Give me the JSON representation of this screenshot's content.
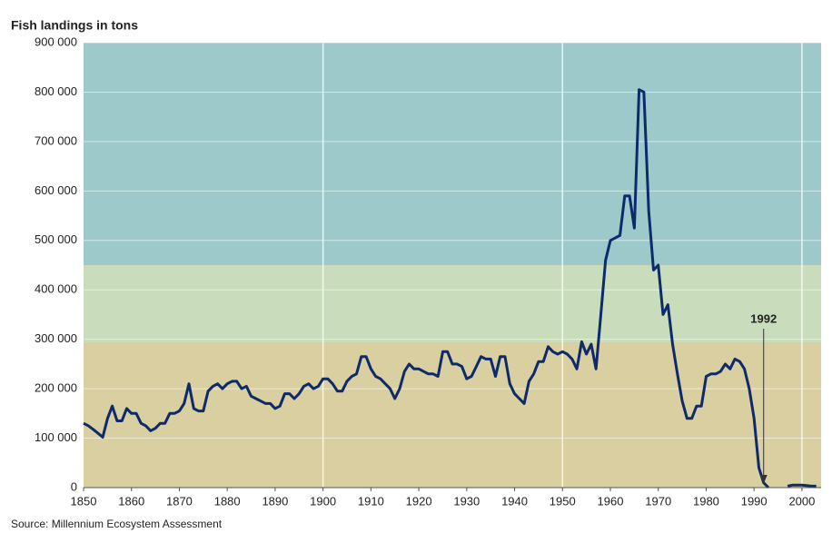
{
  "chart_data": {
    "type": "line",
    "title": "Fish landings in tons",
    "source": "Source: Millennium Ecosystem Assessment",
    "annotation": {
      "text": "1992",
      "x": 1992
    },
    "xlim": [
      1850,
      2004
    ],
    "ylim": [
      0,
      900000
    ],
    "xticks": [
      1850,
      1860,
      1870,
      1880,
      1890,
      1900,
      1910,
      1920,
      1930,
      1940,
      1950,
      1960,
      1970,
      1980,
      1990,
      2000
    ],
    "yticks": [
      0,
      {
        "value": 100000,
        "label": "100 000"
      },
      {
        "value": 200000,
        "label": "200 000"
      },
      {
        "value": 300000,
        "label": "300 000"
      },
      {
        "value": 400000,
        "label": "400 000"
      },
      {
        "value": 500000,
        "label": "500 000"
      },
      {
        "value": 600000,
        "label": "600 000"
      },
      {
        "value": 700000,
        "label": "700 000"
      },
      {
        "value": 800000,
        "label": "800 000"
      },
      {
        "value": 900000,
        "label": "900 000"
      }
    ],
    "grid": true,
    "x": [
      1850,
      1851,
      1852,
      1853,
      1854,
      1855,
      1856,
      1857,
      1858,
      1859,
      1860,
      1861,
      1862,
      1863,
      1864,
      1865,
      1866,
      1867,
      1868,
      1869,
      1870,
      1871,
      1872,
      1873,
      1874,
      1875,
      1876,
      1877,
      1878,
      1879,
      1880,
      1881,
      1882,
      1883,
      1884,
      1885,
      1886,
      1887,
      1888,
      1889,
      1890,
      1891,
      1892,
      1893,
      1894,
      1895,
      1896,
      1897,
      1898,
      1899,
      1900,
      1901,
      1902,
      1903,
      1904,
      1905,
      1906,
      1907,
      1908,
      1909,
      1910,
      1911,
      1912,
      1913,
      1914,
      1915,
      1916,
      1917,
      1918,
      1919,
      1920,
      1921,
      1922,
      1923,
      1924,
      1925,
      1926,
      1927,
      1928,
      1929,
      1930,
      1931,
      1932,
      1933,
      1934,
      1935,
      1936,
      1937,
      1938,
      1939,
      1940,
      1941,
      1942,
      1943,
      1944,
      1945,
      1946,
      1947,
      1948,
      1949,
      1950,
      1951,
      1952,
      1953,
      1954,
      1955,
      1956,
      1957,
      1958,
      1959,
      1960,
      1961,
      1962,
      1963,
      1964,
      1965,
      1966,
      1967,
      1968,
      1969,
      1970,
      1971,
      1972,
      1973,
      1974,
      1975,
      1976,
      1977,
      1978,
      1979,
      1980,
      1981,
      1982,
      1983,
      1984,
      1985,
      1986,
      1987,
      1988,
      1989,
      1990,
      1991,
      1992,
      1993,
      1994,
      1995,
      1996,
      1997,
      1998,
      1999,
      2000,
      2001,
      2002,
      2003
    ],
    "series": [
      {
        "color": "#0d2a6b",
        "values": [
          130000,
          125000,
          118000,
          110000,
          102000,
          140000,
          165000,
          135000,
          135000,
          160000,
          150000,
          150000,
          130000,
          125000,
          115000,
          120000,
          130000,
          130000,
          150000,
          150000,
          155000,
          170000,
          210000,
          160000,
          155000,
          155000,
          195000,
          205000,
          210000,
          200000,
          210000,
          215000,
          215000,
          200000,
          205000,
          185000,
          180000,
          175000,
          170000,
          170000,
          160000,
          165000,
          190000,
          190000,
          180000,
          190000,
          205000,
          210000,
          200000,
          205000,
          220000,
          220000,
          210000,
          195000,
          195000,
          215000,
          225000,
          230000,
          265000,
          265000,
          240000,
          225000,
          220000,
          210000,
          200000,
          180000,
          200000,
          235000,
          250000,
          240000,
          240000,
          235000,
          230000,
          230000,
          225000,
          275000,
          275000,
          250000,
          250000,
          245000,
          220000,
          225000,
          245000,
          265000,
          260000,
          260000,
          225000,
          265000,
          265000,
          210000,
          190000,
          180000,
          170000,
          215000,
          230000,
          255000,
          255000,
          285000,
          275000,
          270000,
          275000,
          270000,
          260000,
          240000,
          295000,
          270000,
          290000,
          240000,
          350000,
          460000,
          500000,
          505000,
          510000,
          590000,
          590000,
          525000,
          805000,
          800000,
          560000,
          440000,
          450000,
          350000,
          370000,
          290000,
          230000,
          175000,
          140000,
          140000,
          165000,
          165000,
          225000,
          230000,
          230000,
          235000,
          250000,
          240000,
          260000,
          255000,
          240000,
          200000,
          140000,
          40000,
          10000,
          0,
          null,
          null,
          null,
          3000,
          5000,
          5000,
          5000,
          4000,
          3000,
          3000
        ]
      }
    ]
  }
}
